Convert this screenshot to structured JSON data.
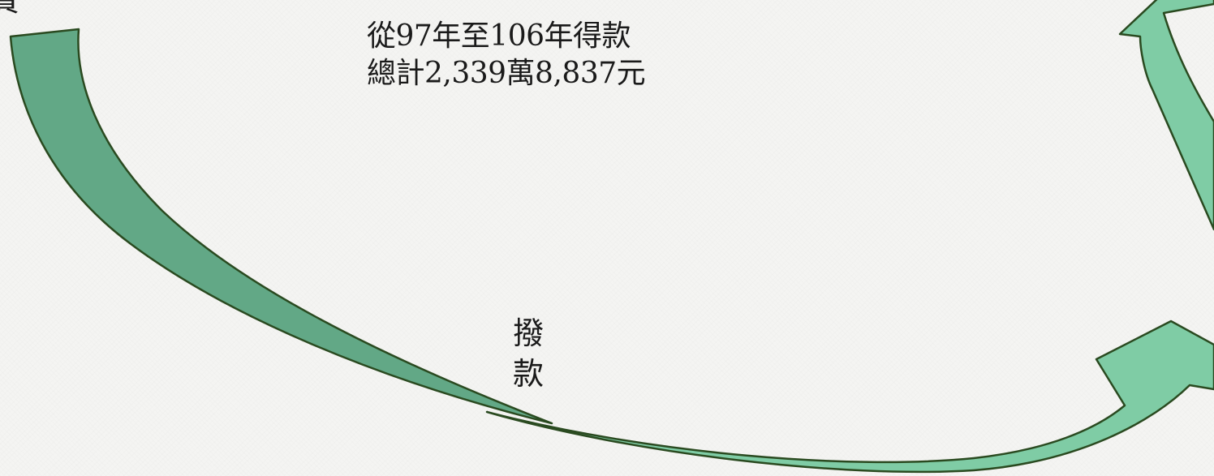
{
  "caption": {
    "line1": "從97年至106年得款",
    "line2": "總計2,339萬8,837元"
  },
  "corner_text": "費",
  "label": {
    "char1": "撥",
    "char2": "款"
  },
  "colors": {
    "arrow_dark_green": "#62a886",
    "arrow_light_green": "#7fcca5",
    "outline": "#2a4a20",
    "text": "#1a1a1a"
  }
}
